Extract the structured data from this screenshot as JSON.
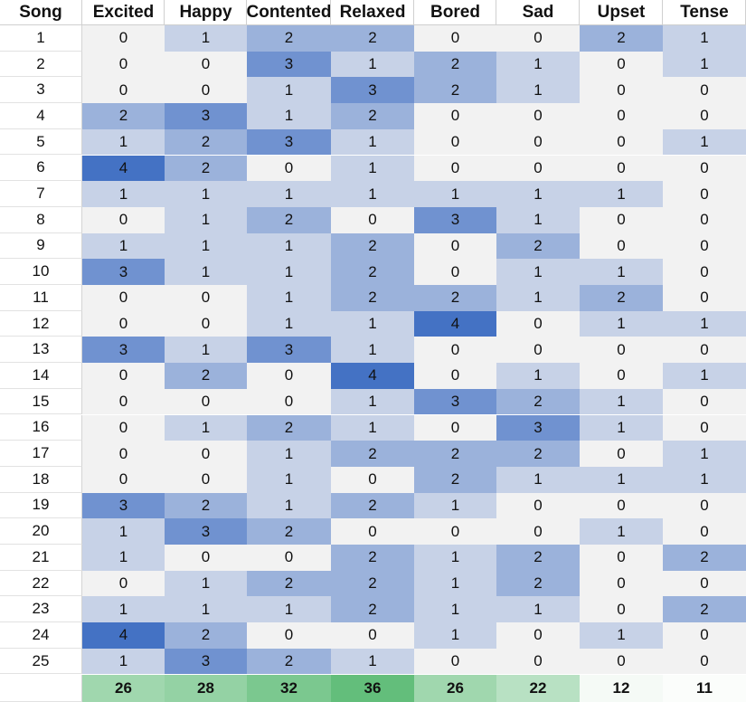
{
  "chart_data": {
    "type": "heatmap",
    "corner_label": "Song",
    "columns": [
      "Excited",
      "Happy",
      "Contented",
      "Relaxed",
      "Bored",
      "Sad",
      "Upset",
      "Tense"
    ],
    "rows": [
      "1",
      "2",
      "3",
      "4",
      "5",
      "6",
      "7",
      "8",
      "9",
      "10",
      "11",
      "12",
      "13",
      "14",
      "15",
      "16",
      "17",
      "18",
      "19",
      "20",
      "21",
      "22",
      "23",
      "24",
      "25"
    ],
    "values": [
      [
        0,
        1,
        2,
        2,
        0,
        0,
        2,
        1
      ],
      [
        0,
        0,
        3,
        1,
        2,
        1,
        0,
        1
      ],
      [
        0,
        0,
        1,
        3,
        2,
        1,
        0,
        0
      ],
      [
        2,
        3,
        1,
        2,
        0,
        0,
        0,
        0
      ],
      [
        1,
        2,
        3,
        1,
        0,
        0,
        0,
        1
      ],
      [
        4,
        2,
        0,
        1,
        0,
        0,
        0,
        0
      ],
      [
        1,
        1,
        1,
        1,
        1,
        1,
        1,
        0
      ],
      [
        0,
        1,
        2,
        0,
        3,
        1,
        0,
        0
      ],
      [
        1,
        1,
        1,
        2,
        0,
        2,
        0,
        0
      ],
      [
        3,
        1,
        1,
        2,
        0,
        1,
        1,
        0
      ],
      [
        0,
        0,
        1,
        2,
        2,
        1,
        2,
        0
      ],
      [
        0,
        0,
        1,
        1,
        4,
        0,
        1,
        1
      ],
      [
        3,
        1,
        3,
        1,
        0,
        0,
        0,
        0
      ],
      [
        0,
        2,
        0,
        4,
        0,
        1,
        0,
        1
      ],
      [
        0,
        0,
        0,
        1,
        3,
        2,
        1,
        0
      ],
      [
        0,
        1,
        2,
        1,
        0,
        3,
        1,
        0
      ],
      [
        0,
        0,
        1,
        2,
        2,
        2,
        0,
        1
      ],
      [
        0,
        0,
        1,
        0,
        2,
        1,
        1,
        1
      ],
      [
        3,
        2,
        1,
        2,
        1,
        0,
        0,
        0
      ],
      [
        1,
        3,
        2,
        0,
        0,
        0,
        1,
        0
      ],
      [
        1,
        0,
        0,
        2,
        1,
        2,
        0,
        2
      ],
      [
        0,
        1,
        2,
        2,
        1,
        2,
        0,
        0
      ],
      [
        1,
        1,
        1,
        2,
        1,
        1,
        0,
        2
      ],
      [
        4,
        2,
        0,
        0,
        1,
        0,
        1,
        0
      ],
      [
        1,
        3,
        2,
        1,
        0,
        0,
        0,
        0
      ]
    ],
    "totals": [
      26,
      28,
      32,
      36,
      26,
      22,
      12,
      11
    ],
    "value_scale": [
      0,
      4
    ],
    "color_scale": {
      "low": "#f2f2f2",
      "high": "#4472c4",
      "totals_low": "#fbfdfb",
      "totals_high": "#63be7b"
    }
  }
}
